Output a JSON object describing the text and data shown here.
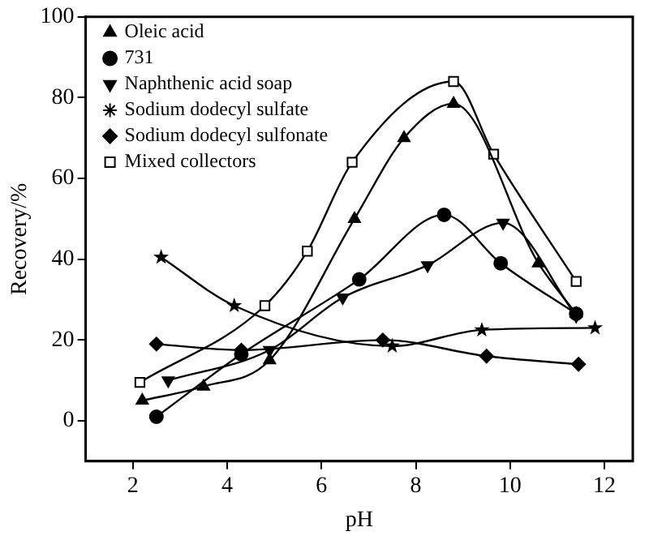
{
  "chart_data": {
    "type": "line",
    "xlabel": "pH",
    "ylabel": "Recovery/%",
    "xlim": [
      1,
      12.6
    ],
    "ylim": [
      -10,
      100
    ],
    "xticks": [
      2,
      4,
      6,
      8,
      10,
      12
    ],
    "yticks": [
      0,
      20,
      40,
      60,
      80,
      100
    ],
    "grid": false,
    "legend": "top left",
    "line_style": "solid",
    "series": [
      {
        "name": "Oleic acid",
        "color": "#000000",
        "marker": "triangle",
        "x": [
          2.2,
          3.5,
          4.9,
          6.7,
          7.75,
          8.8,
          10.6,
          11.4
        ],
        "values": [
          5,
          8.5,
          15,
          50,
          70,
          78.5,
          39,
          26.5
        ]
      },
      {
        "name": "731",
        "color": "#000000",
        "marker": "circle",
        "x": [
          2.5,
          4.3,
          6.8,
          8.6,
          9.8,
          11.4
        ],
        "values": [
          1,
          16.5,
          35,
          51,
          39,
          26.5
        ]
      },
      {
        "name": "Naphthenic acid soap",
        "color": "#000000",
        "marker": "triangle-down",
        "x": [
          2.75,
          4.9,
          6.45,
          8.25,
          9.85,
          11.4
        ],
        "values": [
          10,
          17.5,
          30.5,
          38.5,
          49,
          26
        ]
      },
      {
        "name": "Sodium dodecyl sulfate",
        "color": "#000000",
        "marker": "star",
        "x": [
          2.6,
          4.15,
          7.5,
          9.4,
          11.8
        ],
        "values": [
          40.5,
          28.5,
          18.5,
          22.5,
          23
        ]
      },
      {
        "name": "Sodium dodecyl sulfonate",
        "color": "#000000",
        "marker": "diamond",
        "x": [
          2.5,
          4.3,
          7.3,
          9.5,
          11.45
        ],
        "values": [
          19,
          17.5,
          20,
          16,
          14
        ]
      },
      {
        "name": "Mixed collectors",
        "color": "#000000",
        "marker": "square",
        "x": [
          2.15,
          4.8,
          5.7,
          6.65,
          8.8,
          9.65,
          11.4
        ],
        "values": [
          9.5,
          28.5,
          42,
          64,
          84,
          66,
          34.5
        ]
      }
    ]
  }
}
